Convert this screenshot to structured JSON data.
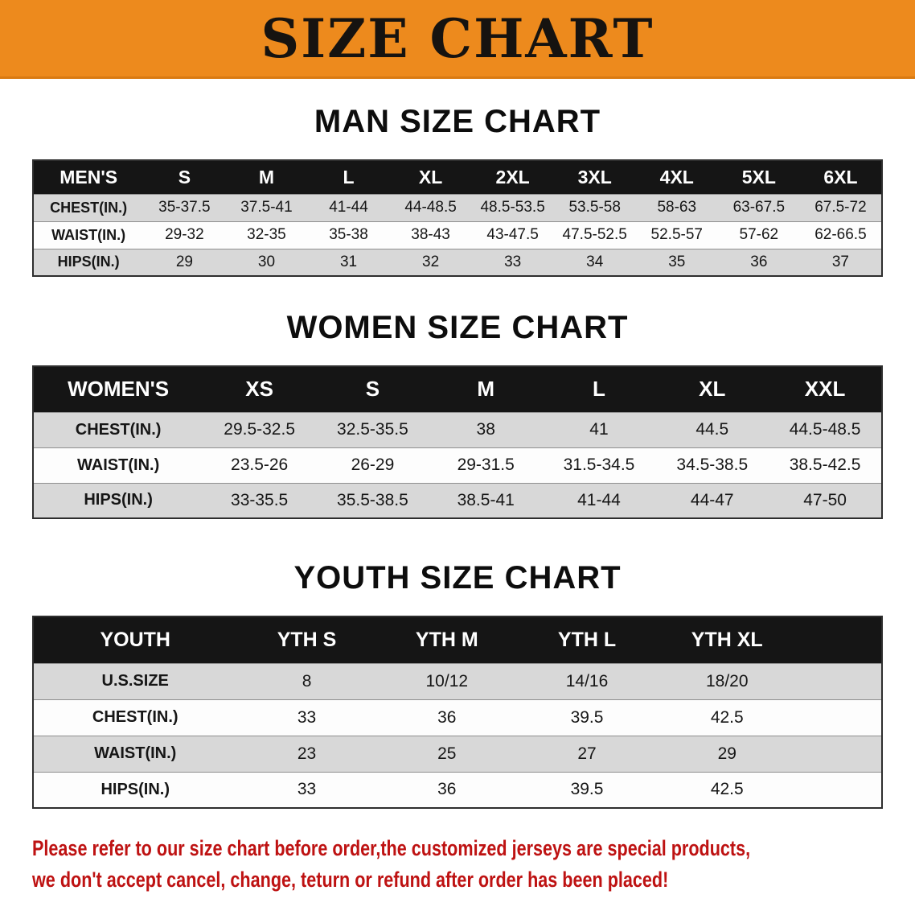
{
  "banner": {
    "title": "SIZE CHART"
  },
  "chart_data": [
    {
      "type": "table",
      "name": "men-size-chart",
      "title": "MAN SIZE CHART",
      "corner_label": "MEN'S",
      "columns": [
        "S",
        "M",
        "L",
        "XL",
        "2XL",
        "3XL",
        "4XL",
        "5XL",
        "6XL"
      ],
      "rows": [
        {
          "label": "CHEST(IN.)",
          "values": [
            "35-37.5",
            "37.5-41",
            "41-44",
            "44-48.5",
            "48.5-53.5",
            "53.5-58",
            "58-63",
            "63-67.5",
            "67.5-72"
          ]
        },
        {
          "label": "WAIST(IN.)",
          "values": [
            "29-32",
            "32-35",
            "35-38",
            "38-43",
            "43-47.5",
            "47.5-52.5",
            "52.5-57",
            "57-62",
            "62-66.5"
          ]
        },
        {
          "label": "HIPS(IN.)",
          "values": [
            "29",
            "30",
            "31",
            "32",
            "33",
            "34",
            "35",
            "36",
            "37"
          ]
        }
      ]
    },
    {
      "type": "table",
      "name": "women-size-chart",
      "title": "WOMEN SIZE CHART",
      "corner_label": "WOMEN'S",
      "columns": [
        "XS",
        "S",
        "M",
        "L",
        "XL",
        "XXL"
      ],
      "rows": [
        {
          "label": "CHEST(IN.)",
          "values": [
            "29.5-32.5",
            "32.5-35.5",
            "38",
            "41",
            "44.5",
            "44.5-48.5"
          ]
        },
        {
          "label": "WAIST(IN.)",
          "values": [
            "23.5-26",
            "26-29",
            "29-31.5",
            "31.5-34.5",
            "34.5-38.5",
            "38.5-42.5"
          ]
        },
        {
          "label": "HIPS(IN.)",
          "values": [
            "33-35.5",
            "35.5-38.5",
            "38.5-41",
            "41-44",
            "44-47",
            "47-50"
          ]
        }
      ]
    },
    {
      "type": "table",
      "name": "youth-size-chart",
      "title": "YOUTH SIZE CHART",
      "corner_label": "YOUTH",
      "columns": [
        "YTH S",
        "YTH M",
        "YTH L",
        "YTH XL"
      ],
      "rows": [
        {
          "label": "U.S.SIZE",
          "values": [
            "8",
            "10/12",
            "14/16",
            "18/20"
          ]
        },
        {
          "label": "CHEST(IN.)",
          "values": [
            "33",
            "36",
            "39.5",
            "42.5"
          ]
        },
        {
          "label": "WAIST(IN.)",
          "values": [
            "23",
            "25",
            "27",
            "29"
          ]
        },
        {
          "label": "HIPS(IN.)",
          "values": [
            "33",
            "36",
            "39.5",
            "42.5"
          ]
        }
      ]
    }
  ],
  "footer": {
    "line1": "Please refer to our size chart before order,the customized jerseys are special products,",
    "line2": "we don't accept cancel, change, teturn or refund after order has been placed!"
  },
  "colors": {
    "banner_orange": "#ED8A1D",
    "header_black": "#151515",
    "row_gray": "#D8D8D8",
    "footer_red": "#BE1212"
  }
}
